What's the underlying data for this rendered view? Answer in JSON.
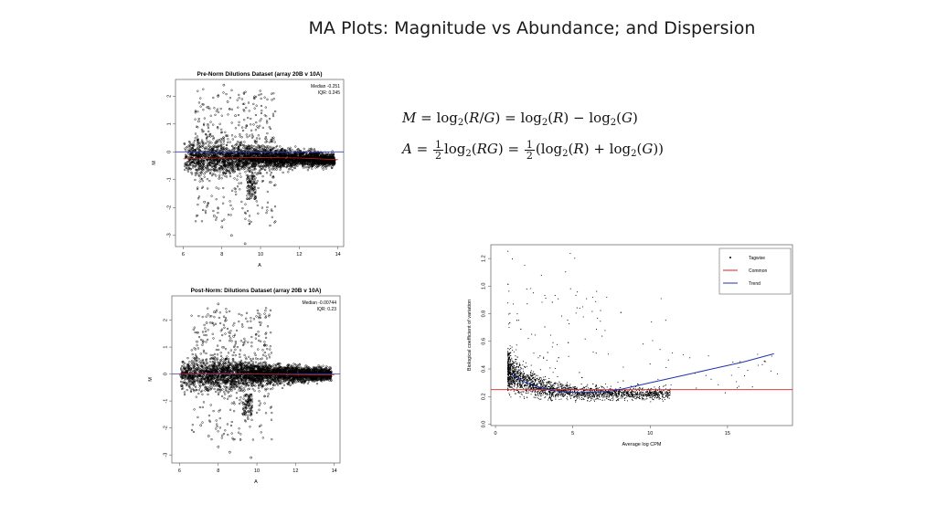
{
  "slide": {
    "title": "MA Plots: Magnitude vs Abundance; and Dispersion"
  },
  "formulas": {
    "m_formula": "M = log2(R/G) = log2(R) − log2(G)",
    "a_formula": "A = 1/2 log2(RG) = 1/2 (log2(R) + log2(G))"
  },
  "chart_data": [
    {
      "type": "scatter",
      "title": "Pre-Norm Dilutions Dataset (array 20B v 10A)",
      "xlabel": "A",
      "ylabel": "M",
      "xlim": [
        5.6,
        14.3
      ],
      "ylim": [
        -3.4,
        2.6
      ],
      "xticks": [
        6,
        8,
        10,
        12,
        14
      ],
      "yticks": [
        -3,
        -2,
        -1,
        0,
        1,
        2
      ],
      "annotation": [
        "Median -0.251",
        "IQR: 0.245"
      ],
      "reference_line": {
        "y": 0,
        "color": "#3a3acc"
      },
      "trend": {
        "x": [
          6.0,
          8.0,
          10.0,
          12.0,
          14.0
        ],
        "y": [
          -0.25,
          -0.22,
          -0.2,
          -0.22,
          -0.28
        ],
        "color": "#cc2222"
      },
      "cloud": [
        [
          6.0,
          -0.18,
          0.45
        ],
        [
          7.0,
          -0.2,
          0.5
        ],
        [
          8.0,
          -0.22,
          0.48
        ],
        [
          9.0,
          -0.22,
          0.42
        ],
        [
          10.0,
          -0.21,
          0.35
        ],
        [
          11.0,
          -0.22,
          0.3
        ],
        [
          12.0,
          -0.23,
          0.26
        ],
        [
          13.0,
          -0.26,
          0.22
        ],
        [
          14.0,
          -0.3,
          0.18
        ]
      ],
      "outliers": [
        [
          7.3,
          1.6
        ],
        [
          7.8,
          2.0
        ],
        [
          8.1,
          2.4
        ],
        [
          8.3,
          1.8
        ],
        [
          8.7,
          1.3
        ],
        [
          7.6,
          -2.3
        ],
        [
          8.0,
          -2.7
        ],
        [
          8.5,
          -3.0
        ],
        [
          9.2,
          -3.3
        ],
        [
          7.1,
          -1.8
        ],
        [
          9.6,
          -1.4
        ],
        [
          6.8,
          1.1
        ]
      ],
      "grid": false
    },
    {
      "type": "scatter",
      "title": "Post-Norm: Dilutions Dataset (array 20B v 10A)",
      "xlabel": "A",
      "ylabel": "M",
      "xlim": [
        5.6,
        14.3
      ],
      "ylim": [
        -3.3,
        2.9
      ],
      "xticks": [
        6,
        8,
        10,
        12,
        14
      ],
      "yticks": [
        -3,
        -2,
        -1,
        0,
        1,
        2
      ],
      "annotation": [
        "Median -0.00744",
        "IQR: 0.23"
      ],
      "reference_line": {
        "y": 0,
        "color": "#3a3acc"
      },
      "trend": {
        "x": [
          6.0,
          8.0,
          10.0,
          12.0,
          14.0
        ],
        "y": [
          0.0,
          0.02,
          0.0,
          -0.02,
          -0.03
        ],
        "color": "#cc2222"
      },
      "cloud": [
        [
          6.0,
          0.0,
          0.45
        ],
        [
          7.0,
          0.0,
          0.5
        ],
        [
          8.0,
          0.0,
          0.48
        ],
        [
          9.0,
          0.0,
          0.42
        ],
        [
          10.0,
          0.0,
          0.35
        ],
        [
          11.0,
          0.0,
          0.3
        ],
        [
          12.0,
          0.0,
          0.26
        ],
        [
          13.0,
          0.0,
          0.22
        ],
        [
          14.0,
          0.0,
          0.18
        ]
      ],
      "outliers": [
        [
          7.4,
          1.9
        ],
        [
          7.8,
          2.3
        ],
        [
          8.0,
          2.6
        ],
        [
          8.4,
          2.0
        ],
        [
          8.8,
          1.4
        ],
        [
          7.5,
          -2.3
        ],
        [
          8.0,
          -2.7
        ],
        [
          8.6,
          -2.9
        ],
        [
          9.7,
          -3.1
        ],
        [
          7.1,
          -1.9
        ],
        [
          9.3,
          -1.5
        ],
        [
          6.9,
          1.2
        ]
      ],
      "grid": false
    },
    {
      "type": "scatter",
      "title": "",
      "xlabel": "Average log CPM",
      "ylabel": "Biological coefficient of variation",
      "xlim": [
        -0.3,
        19.2
      ],
      "ylim": [
        -0.01,
        1.3
      ],
      "xticks": [
        0,
        5,
        10,
        15
      ],
      "yticks": [
        0.0,
        0.2,
        0.4,
        0.6,
        0.8,
        1.0,
        1.2
      ],
      "legend": {
        "position": "top-right",
        "entries": [
          {
            "label": "Tagwise",
            "kind": "point",
            "color": "#000000"
          },
          {
            "label": "Common",
            "kind": "line",
            "color": "#dd2222"
          },
          {
            "label": "Trend",
            "kind": "line",
            "color": "#2233aa"
          }
        ]
      },
      "common": 0.25,
      "trend": {
        "x": [
          1.0,
          2.0,
          3.0,
          4.0,
          5.0,
          6.0,
          7.0,
          8.0,
          10.0,
          12.0,
          14.0,
          16.0,
          18.0
        ],
        "y": [
          0.36,
          0.3,
          0.26,
          0.24,
          0.23,
          0.23,
          0.235,
          0.25,
          0.3,
          0.35,
          0.4,
          0.45,
          0.51
        ]
      },
      "grid": false
    }
  ]
}
